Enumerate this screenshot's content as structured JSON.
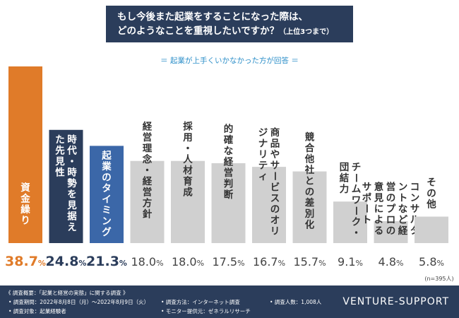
{
  "title": {
    "line1": "もし今後また起業をすることになった際は、",
    "line2": "どのようなことを重視したいですか？",
    "note": "（上位3つまで）"
  },
  "subtitle": "＝ 起業が上手くいかなかった方が回答 ＝",
  "chart_data": {
    "type": "bar",
    "title": "もし今後また起業をすることになった際は、どのようなことを重視したいですか？（上位3つまで）",
    "subtitle": "起業が上手くいかなかった方が回答",
    "categories": [
      "資金繰り",
      "時代・時勢を見据えた先見性",
      "起業のタイミング",
      "経営理念・経営方針",
      "採用・人材育成",
      "的確な経営判断",
      "商品やサービスのオリジナリティ",
      "競合他社との差別化",
      "チームワーク・団結力",
      "コンサルタントなど経営のプロの意見によるサポート",
      "その他"
    ],
    "values": [
      38.7,
      24.8,
      21.3,
      18.0,
      18.0,
      17.5,
      16.7,
      15.7,
      9.1,
      4.8,
      5.8
    ],
    "value_labels": [
      "38.7%",
      "24.8%",
      "21.3%",
      "18.0%",
      "18.0%",
      "17.5%",
      "16.7%",
      "15.7%",
      "9.1%",
      "4.8%",
      "5.8%"
    ],
    "units": "%",
    "sample_note": "(n=395人)",
    "ylim": [
      0,
      38.7
    ],
    "colors": {
      "rank1": "#e07b29",
      "rank2": "#2b3d5b",
      "rank3": "#3b67a8",
      "other": "#d0d0d0"
    }
  },
  "footer": {
    "overview": "《 調査概要：「起業と経営の実態」に関する調査 》",
    "period": "• 調査期間：2022年8月8日（月）～2022年8月9日（火）",
    "target": "• 調査対象：起業経験者",
    "method": "• 調査方法：インターネット調査",
    "provider": "• モニター提供元：ゼネラルリサーチ",
    "count": "• 調査人数：1,008人",
    "brand": "VENTURE-SUPPORT"
  }
}
